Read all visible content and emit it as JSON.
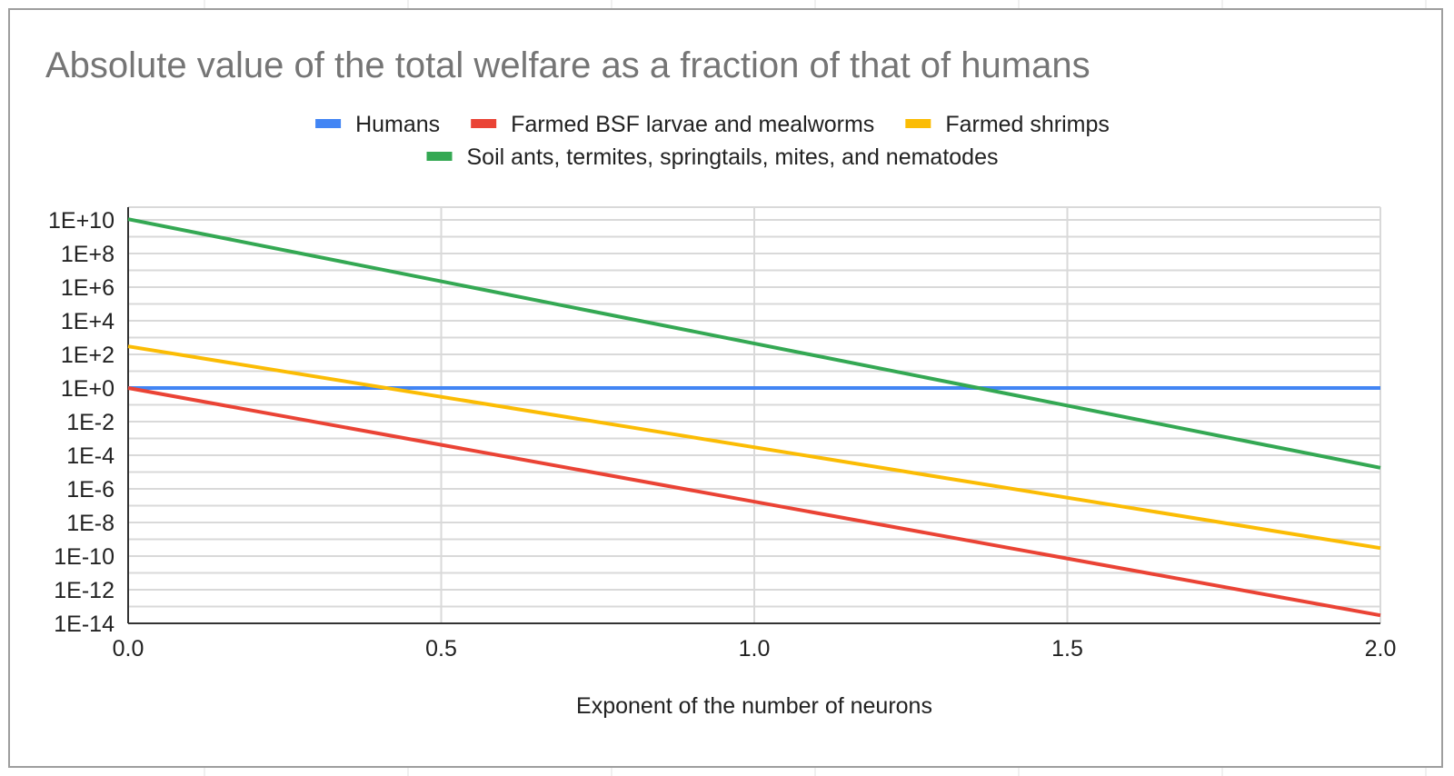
{
  "chart_data": {
    "type": "line",
    "title": "Absolute value of the total welfare as a fraction of that of humans",
    "xlabel": "Exponent of the number of neurons",
    "ylabel": "",
    "x_scale": "linear",
    "y_scale": "log",
    "xlim": [
      0.0,
      2.0
    ],
    "ylim": [
      1e-14,
      10000000000.0
    ],
    "x_ticks": [
      "0.0",
      "0.5",
      "1.0",
      "1.5",
      "2.0"
    ],
    "x_tick_values": [
      0.0,
      0.5,
      1.0,
      1.5,
      2.0
    ],
    "y_ticks": [
      "1E-14",
      "1E-12",
      "1E-10",
      "1E-8",
      "1E-6",
      "1E-4",
      "1E-2",
      "1E+0",
      "1E+2",
      "1E+4",
      "1E+6",
      "1E+8",
      "1E+10"
    ],
    "y_tick_values": [
      1e-14,
      1e-12,
      1e-10,
      1e-08,
      1e-06,
      0.0001,
      0.01,
      1,
      100,
      10000,
      1000000,
      100000000,
      10000000000
    ],
    "grid": true,
    "legend_position": "top",
    "series": [
      {
        "name": "Humans",
        "color": "#4285f4",
        "x": [
          0.0,
          2.0
        ],
        "y": [
          1,
          1
        ]
      },
      {
        "name": "Farmed BSF larvae and mealworms",
        "color": "#ea4335",
        "x": [
          0.0,
          2.0
        ],
        "y": [
          1,
          3e-14
        ]
      },
      {
        "name": "Farmed shrimps",
        "color": "#fbbc04",
        "x": [
          0.0,
          2.0
        ],
        "y": [
          300,
          3e-10
        ]
      },
      {
        "name": "Soil ants, termites, springtails, mites, and nematodes",
        "color": "#34a853",
        "x": [
          0.0,
          2.0
        ],
        "y": [
          11000000000.0,
          1.8e-05
        ]
      }
    ]
  }
}
